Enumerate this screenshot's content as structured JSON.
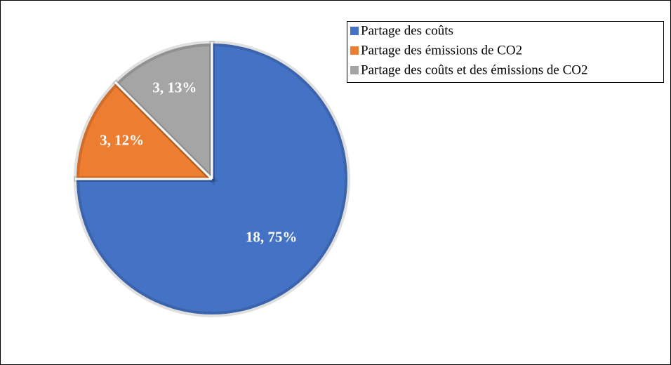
{
  "chart_data": {
    "type": "pie",
    "categories": [
      "Partage des coûts",
      "Partage des émissions de CO2",
      "Partage des coûts et des émissions de CO2"
    ],
    "values": [
      18,
      3,
      3
    ],
    "value_labels": [
      "18, 75%",
      "3, 12%",
      "3, 13%"
    ],
    "colors": [
      "#4472c4",
      "#ed7d31",
      "#a5a5a5"
    ],
    "legend": "top-right"
  }
}
